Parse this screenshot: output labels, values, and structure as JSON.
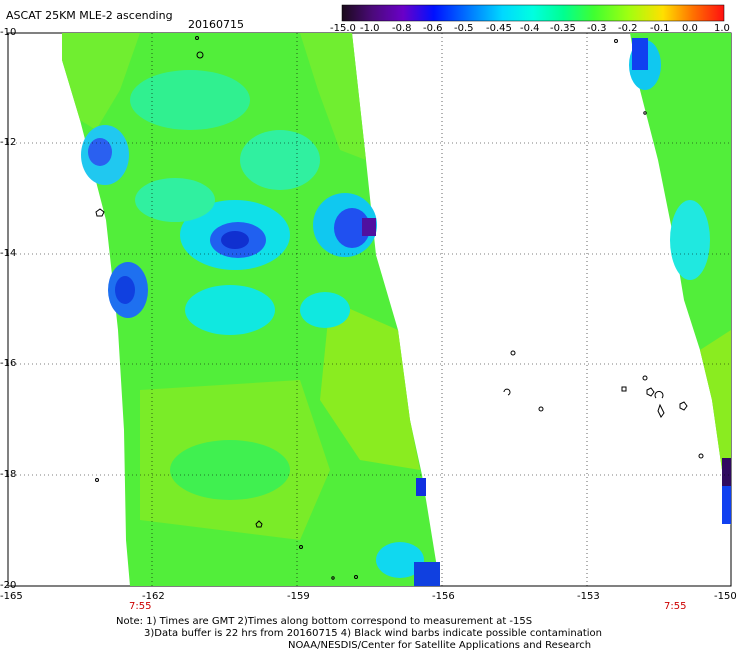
{
  "header": {
    "title": "ASCAT 25KM MLE-2 ascending",
    "date": "20160715"
  },
  "colorbar": {
    "labels": [
      "-15.0",
      "-1.0",
      "-0.8",
      "-0.6",
      "-0.5",
      "-0.45",
      "-0.4",
      "-0.35",
      "-0.3",
      "-0.2",
      "-0.1",
      "0.0",
      "1.0"
    ],
    "stops": [
      "#1a0a1a",
      "#4b0a7a",
      "#6a00c8",
      "#0010ff",
      "#0080ff",
      "#00d8ff",
      "#00ffe0",
      "#00ff90",
      "#40ff30",
      "#a0ff10",
      "#ffe000",
      "#ff7000",
      "#ff1010"
    ]
  },
  "map": {
    "x_ticks": [
      "-165",
      "-162",
      "-159",
      "-156",
      "-153",
      "-150"
    ],
    "y_ticks": [
      "-10",
      "-12",
      "-14",
      "-16",
      "-18",
      "-20"
    ],
    "time_labels": [
      "7:55",
      "7:55"
    ]
  },
  "notes": {
    "line1": "Note: 1) Times are GMT 2)Times along bottom correspond to measurement at -15S",
    "line2": "3)Data buffer is 22 hrs from 20160715 4) Black wind barbs indicate possible contamination",
    "line3": "NOAA/NESDIS/Center for Satellite Applications and Research"
  }
}
